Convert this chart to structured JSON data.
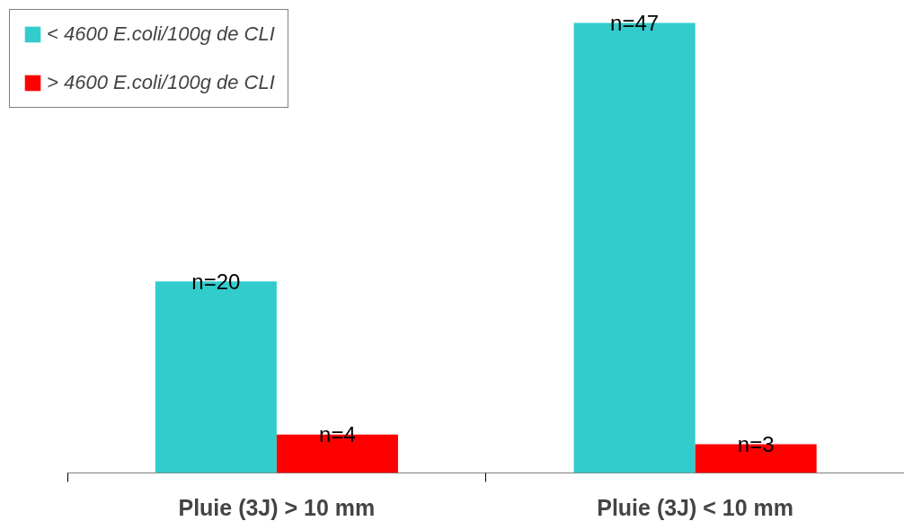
{
  "chart_data": {
    "type": "bar",
    "categories": [
      "Pluie (3J) > 10 mm",
      "Pluie (3J) < 10 mm"
    ],
    "series": [
      {
        "name": "< 4600 E.coli/100g de CLI",
        "color": "#33cccc",
        "values": [
          20,
          47
        ],
        "value_labels": [
          "n=20",
          "n=47"
        ]
      },
      {
        "name": "> 4600 E.coli/100g de CLI",
        "color": "#ff0000",
        "values": [
          4,
          3
        ],
        "value_labels": [
          "n=4",
          "n=3"
        ]
      }
    ],
    "legend": "top left",
    "grid": false
  }
}
